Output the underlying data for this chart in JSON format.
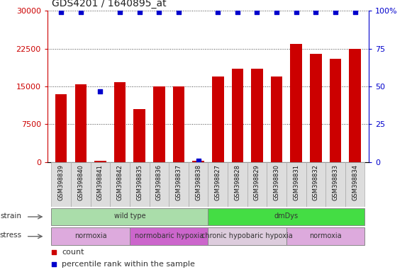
{
  "title": "GDS4201 / 1640895_at",
  "samples": [
    "GSM398839",
    "GSM398840",
    "GSM398841",
    "GSM398842",
    "GSM398835",
    "GSM398836",
    "GSM398837",
    "GSM398838",
    "GSM398827",
    "GSM398828",
    "GSM398829",
    "GSM398830",
    "GSM398831",
    "GSM398832",
    "GSM398833",
    "GSM398834"
  ],
  "counts": [
    13500,
    15500,
    300,
    15800,
    10500,
    15000,
    15000,
    300,
    17000,
    18500,
    18500,
    17000,
    23500,
    21500,
    20500,
    22500
  ],
  "percentile": [
    99,
    99,
    47,
    99,
    99,
    99,
    99,
    1,
    99,
    99,
    99,
    99,
    99,
    99,
    99,
    99
  ],
  "bar_color": "#cc0000",
  "dot_color": "#0000cc",
  "left_ylim": [
    0,
    30000
  ],
  "right_ylim": [
    0,
    100
  ],
  "left_yticks": [
    0,
    7500,
    15000,
    22500,
    30000
  ],
  "right_yticks": [
    0,
    25,
    50,
    75,
    100
  ],
  "strain_groups": [
    {
      "label": "wild type",
      "start": 0,
      "end": 8,
      "color": "#aaddaa"
    },
    {
      "label": "dmDys",
      "start": 8,
      "end": 16,
      "color": "#44dd44"
    }
  ],
  "stress_groups": [
    {
      "label": "normoxia",
      "start": 0,
      "end": 4,
      "color": "#ddaadd"
    },
    {
      "label": "normobaric hypoxia",
      "start": 4,
      "end": 8,
      "color": "#cc66cc"
    },
    {
      "label": "chronic hypobaric hypoxia",
      "start": 8,
      "end": 12,
      "color": "#ddccdd"
    },
    {
      "label": "normoxia",
      "start": 12,
      "end": 16,
      "color": "#ddaadd"
    }
  ],
  "left_axis_color": "#cc0000",
  "right_axis_color": "#0000cc",
  "sample_bg_color": "#dddddd",
  "sample_border_color": "#aaaaaa"
}
